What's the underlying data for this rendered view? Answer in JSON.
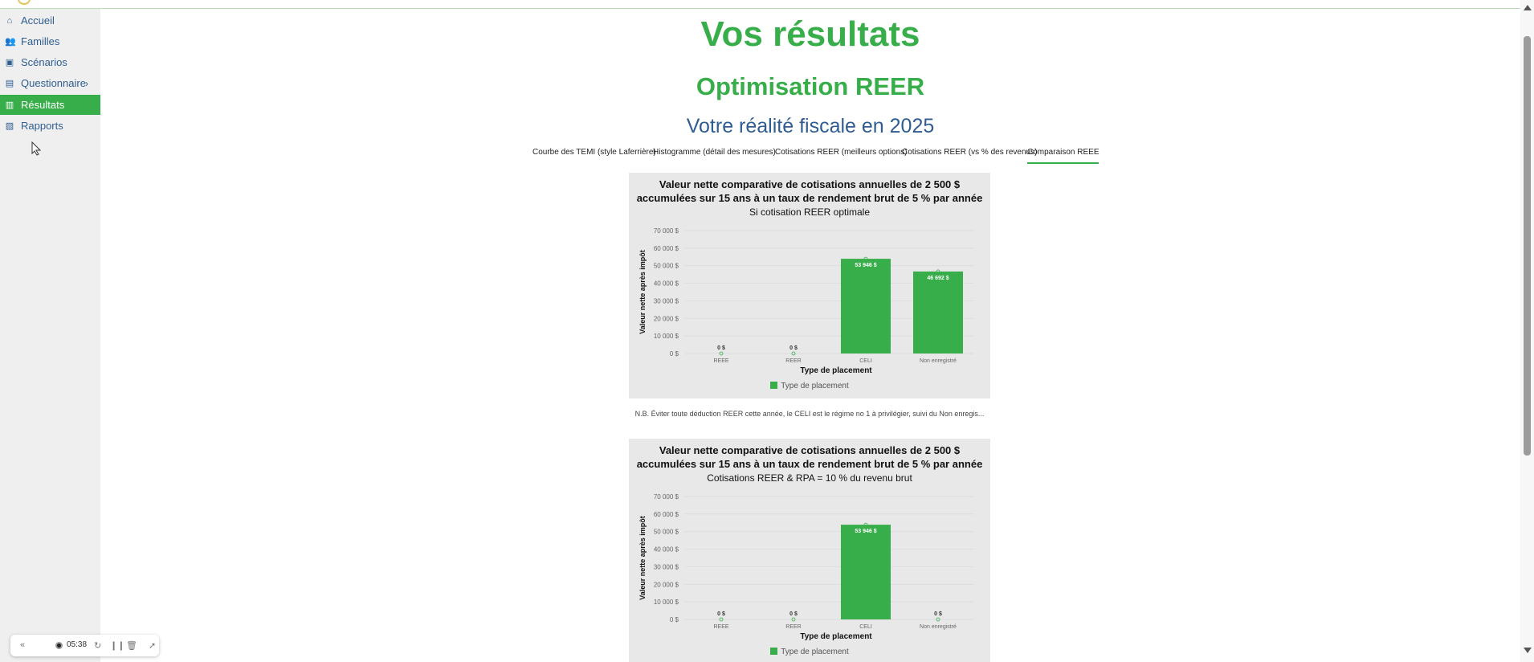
{
  "sidebar": {
    "items": [
      {
        "label": "Accueil",
        "icon": "home-icon"
      },
      {
        "label": "Familles",
        "icon": "users-icon"
      },
      {
        "label": "Scénarios",
        "icon": "image-icon"
      },
      {
        "label": "Questionnaire",
        "icon": "document-icon",
        "chevron": "›"
      },
      {
        "label": "Résultats",
        "icon": "bar-chart-icon"
      },
      {
        "label": "Rapports",
        "icon": "report-icon"
      }
    ]
  },
  "recorder": {
    "time": "05:38"
  },
  "main": {
    "title": "Vos résultats",
    "section_title": "Optimisation REER",
    "subtitle": "Votre réalité fiscale en 2025",
    "tabs": [
      {
        "label": "Courbe des TEMI (style Laferrière)"
      },
      {
        "label": "Histogramme (détail des mesures)"
      },
      {
        "label": "Cotisations REER (meilleurs options)"
      },
      {
        "label": "Cotisations REER (vs % des revenus)"
      },
      {
        "label": "Comparaison REEE"
      }
    ],
    "note": "N.B. Éviter toute déduction REER cette année, le CELI est le régime no 1 à privilégier, suivi du Non enregis..."
  },
  "colors": {
    "accent": "#38ae4a",
    "nav_text": "#2f5d92",
    "card_bg": "#e8e8e8"
  },
  "chart_data": [
    {
      "type": "bar",
      "title_line1": "Valeur nette comparative de cotisations annuelles de 2 500 $",
      "title_line2": "accumulées sur 15 ans à un taux de rendement brut de 5 % par année",
      "subtitle": "Si cotisation REER optimale",
      "xlabel": "Type de placement",
      "ylabel": "Valeur nette après impôt",
      "categories": [
        "REEE",
        "REER",
        "CELI",
        "Non enregistré"
      ],
      "values": [
        0,
        0,
        53946,
        46692
      ],
      "data_labels": [
        "0 $",
        "0 $",
        "53 946 $",
        "46 692 $"
      ],
      "ylim": [
        0,
        70000
      ],
      "yticks": [
        "0 $",
        "10 000 $",
        "20 000 $",
        "30 000 $",
        "40 000 $",
        "50 000 $",
        "60 000 $",
        "70 000 $"
      ],
      "legend": "Type de placement",
      "legend_placement": "bottom"
    },
    {
      "type": "bar",
      "title_line1": "Valeur nette comparative de cotisations annuelles de 2 500 $",
      "title_line2": "accumulées sur 15 ans à un taux de rendement brut de 5 % par année",
      "subtitle": "Cotisations REER & RPA = 10 % du revenu brut",
      "xlabel": "Type de placement",
      "ylabel": "Valeur nette après impôt",
      "categories": [
        "REEE",
        "REER",
        "CELI",
        "Non enregistré"
      ],
      "values": [
        0,
        0,
        53946,
        0
      ],
      "data_labels": [
        "0 $",
        "0 $",
        "53 946 $",
        "0 $"
      ],
      "ylim": [
        0,
        70000
      ],
      "yticks": [
        "0 $",
        "10 000 $",
        "20 000 $",
        "30 000 $",
        "40 000 $",
        "50 000 $",
        "60 000 $",
        "70 000 $"
      ],
      "legend": "Type de placement",
      "legend_placement": "bottom"
    }
  ]
}
